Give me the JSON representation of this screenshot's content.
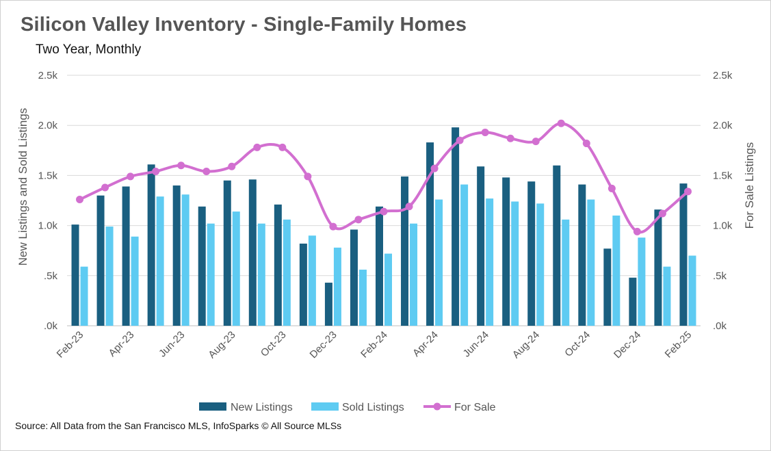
{
  "header": {
    "title": "Silicon Valley Inventory - Single-Family Homes",
    "subtitle": "Two Year, Monthly"
  },
  "footer": {
    "source": "Source: All Data from the San Francisco MLS, InfoSparks © All Source MLSs"
  },
  "colors": {
    "new_listings": "#1a5f80",
    "sold_listings": "#5ecbf2",
    "for_sale": "#d26fd0",
    "grid": "#d9d9d9"
  },
  "chart_data": {
    "type": "bar",
    "title": "Silicon Valley Inventory - Single-Family Homes",
    "subtitle": "Two Year, Monthly",
    "ylabel": "New Listings and Sold Listings",
    "y2label": "For Sale Listings",
    "ylim": [
      0,
      2500
    ],
    "y2lim": [
      0,
      2500
    ],
    "yticks": [
      ".0k",
      ".5k",
      "1.0k",
      "1.5k",
      "2.0k",
      "2.5k"
    ],
    "y2ticks": [
      ".0k",
      ".5k",
      "1.0k",
      "1.5k",
      "2.0k",
      "2.5k"
    ],
    "categories": [
      "Feb-23",
      "Mar-23",
      "Apr-23",
      "May-23",
      "Jun-23",
      "Jul-23",
      "Aug-23",
      "Sep-23",
      "Oct-23",
      "Nov-23",
      "Dec-23",
      "Jan-24",
      "Feb-24",
      "Mar-24",
      "Apr-24",
      "May-24",
      "Jun-24",
      "Jul-24",
      "Aug-24",
      "Sep-24",
      "Oct-24",
      "Nov-24",
      "Dec-24",
      "Jan-25",
      "Feb-25"
    ],
    "xtick_labels": [
      "Feb-23",
      "",
      "Apr-23",
      "",
      "Jun-23",
      "",
      "Aug-23",
      "",
      "Oct-23",
      "",
      "Dec-23",
      "",
      "Feb-24",
      "",
      "Apr-24",
      "",
      "Jun-24",
      "",
      "Aug-24",
      "",
      "Oct-24",
      "",
      "Dec-24",
      "",
      "Feb-25"
    ],
    "series": [
      {
        "name": "New Listings",
        "type": "bar",
        "axis": "left",
        "values": [
          1010,
          1300,
          1390,
          1610,
          1400,
          1190,
          1450,
          1460,
          1210,
          820,
          430,
          960,
          1190,
          1490,
          1830,
          1980,
          1590,
          1480,
          1440,
          1600,
          1410,
          770,
          480,
          1160,
          1420
        ]
      },
      {
        "name": "Sold Listings",
        "type": "bar",
        "axis": "left",
        "values": [
          590,
          990,
          890,
          1290,
          1310,
          1020,
          1140,
          1020,
          1060,
          900,
          780,
          560,
          720,
          1020,
          1260,
          1410,
          1270,
          1240,
          1220,
          1060,
          1260,
          1100,
          880,
          590,
          700
        ]
      },
      {
        "name": "For Sale",
        "type": "line",
        "axis": "right",
        "values": [
          1260,
          1380,
          1490,
          1540,
          1600,
          1540,
          1590,
          1780,
          1780,
          1490,
          990,
          1060,
          1140,
          1190,
          1570,
          1850,
          1930,
          1870,
          1840,
          2020,
          1820,
          1370,
          940,
          1120,
          1340
        ]
      }
    ],
    "legend": {
      "position": "bottom",
      "entries": [
        "New Listings",
        "Sold Listings",
        "For Sale"
      ]
    },
    "grid": true
  }
}
